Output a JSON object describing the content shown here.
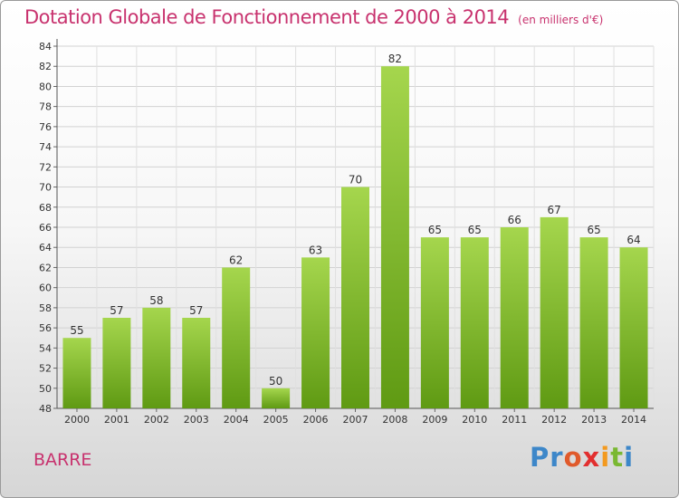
{
  "header": {
    "title": "Dotation Globale de Fonctionnement de 2000 à 2014",
    "subtitle": "(en milliers d'€)"
  },
  "footer": {
    "place": "BARRE",
    "logo": "Proxiti"
  },
  "colors": {
    "title": "#c8326e",
    "bar_light": "#a5d64d",
    "bar_dark": "#5f9a13"
  },
  "chart_data": {
    "type": "bar",
    "title": "Dotation Globale de Fonctionnement de 2000 à 2014",
    "subtitle": "(en milliers d'€)",
    "categories": [
      "2000",
      "2001",
      "2002",
      "2003",
      "2004",
      "2005",
      "2006",
      "2007",
      "2008",
      "2009",
      "2010",
      "2011",
      "2012",
      "2013",
      "2014"
    ],
    "values": [
      55,
      57,
      58,
      57,
      62,
      50,
      63,
      70,
      82,
      65,
      65,
      66,
      67,
      65,
      64
    ],
    "ylim": [
      48,
      84
    ],
    "yticks": [
      48,
      50,
      52,
      54,
      56,
      58,
      60,
      62,
      64,
      66,
      68,
      70,
      72,
      74,
      76,
      78,
      80,
      82,
      84
    ],
    "grid": true,
    "xlabel": "",
    "ylabel": ""
  }
}
